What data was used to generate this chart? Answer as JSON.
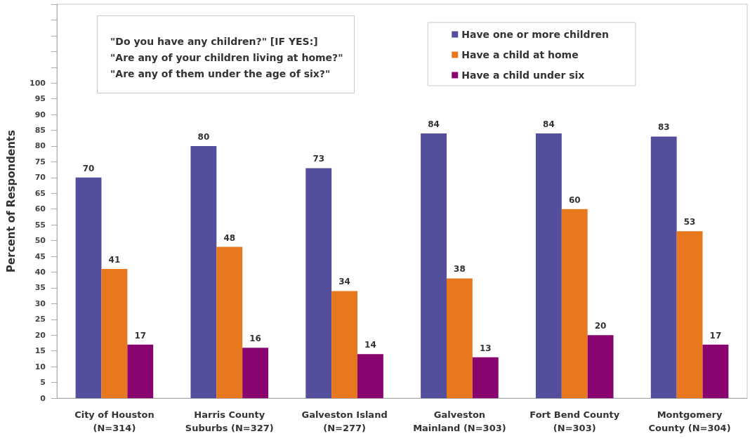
{
  "chart_data": {
    "type": "bar",
    "ylabel": "Percent of Respondents",
    "annotations": [
      "\"Do you have any children?\" [IF YES:]",
      "\"Are any of your children living at home?\"",
      "\"Are any of them under the age of six?\""
    ],
    "categories": [
      "City of Houston\n(N=314)",
      "Harris County\nSuburbs (N=327)",
      "Galveston Island\n(N=277)",
      "Galveston\nMainland (N=303)",
      "Fort Bend County\n(N=303)",
      "Montgomery\nCounty (N=304)"
    ],
    "series": [
      {
        "name": "Have one or more children",
        "color": "#544f9c",
        "values": [
          70,
          80,
          73,
          84,
          84,
          83
        ]
      },
      {
        "name": "Have a child at home",
        "color": "#e8781e",
        "values": [
          41,
          48,
          34,
          38,
          60,
          53
        ]
      },
      {
        "name": "Have a child under six",
        "color": "#8a0470",
        "values": [
          17,
          16,
          14,
          13,
          20,
          17
        ]
      }
    ],
    "ylim": [
      0,
      125
    ],
    "yticks": [
      0,
      5,
      10,
      15,
      20,
      25,
      30,
      35,
      40,
      45,
      50,
      55,
      60,
      65,
      70,
      75,
      80,
      85,
      90,
      95,
      100,
      {
        "value": 105,
        "label": null
      },
      {
        "value": 110,
        "label": null
      },
      {
        "value": 115,
        "label": null
      },
      {
        "value": 120,
        "label": null
      },
      {
        "value": 125,
        "label": null
      }
    ],
    "legend": "top right",
    "data_labels": true
  }
}
